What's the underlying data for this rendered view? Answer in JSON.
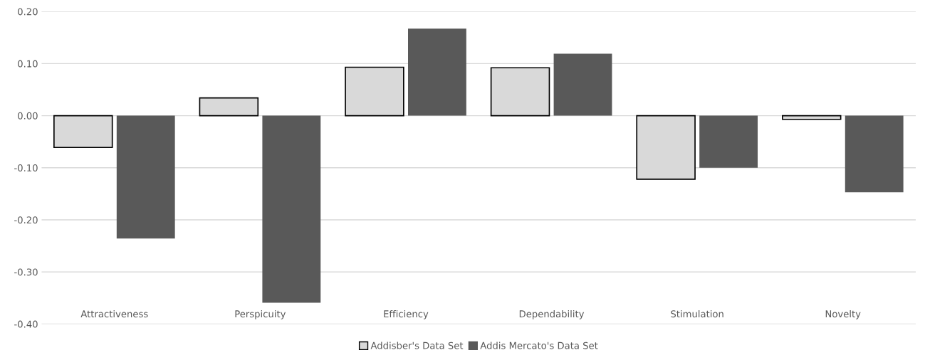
{
  "chart_data": {
    "type": "bar",
    "categories": [
      "Attractiveness",
      "Perspicuity",
      "Efficiency",
      "Dependability",
      "Stimulation",
      "Novelty"
    ],
    "series": [
      {
        "name": "Addisber's Data Set",
        "color": "#d9d9d9",
        "values": [
          -0.061,
          0.034,
          0.093,
          0.092,
          -0.122,
          -0.007
        ]
      },
      {
        "name": "Addis Mercato's Data Set",
        "color": "#595959",
        "values": [
          -0.236,
          -0.359,
          0.167,
          0.119,
          -0.1,
          -0.147
        ]
      }
    ],
    "ylim": [
      -0.4,
      0.2
    ],
    "yticks": [
      {
        "value": -0.4,
        "label": "-0.40"
      },
      {
        "value": -0.3,
        "label": "-0.30"
      },
      {
        "value": -0.2,
        "label": "-0.20"
      },
      {
        "value": -0.1,
        "label": "-0.10"
      },
      {
        "value": 0,
        "label": "0.00"
      },
      {
        "value": 0.1,
        "label": "0.10"
      },
      {
        "value": 0.2,
        "label": "0.20"
      }
    ],
    "grid": "y",
    "legend": "bottom"
  }
}
